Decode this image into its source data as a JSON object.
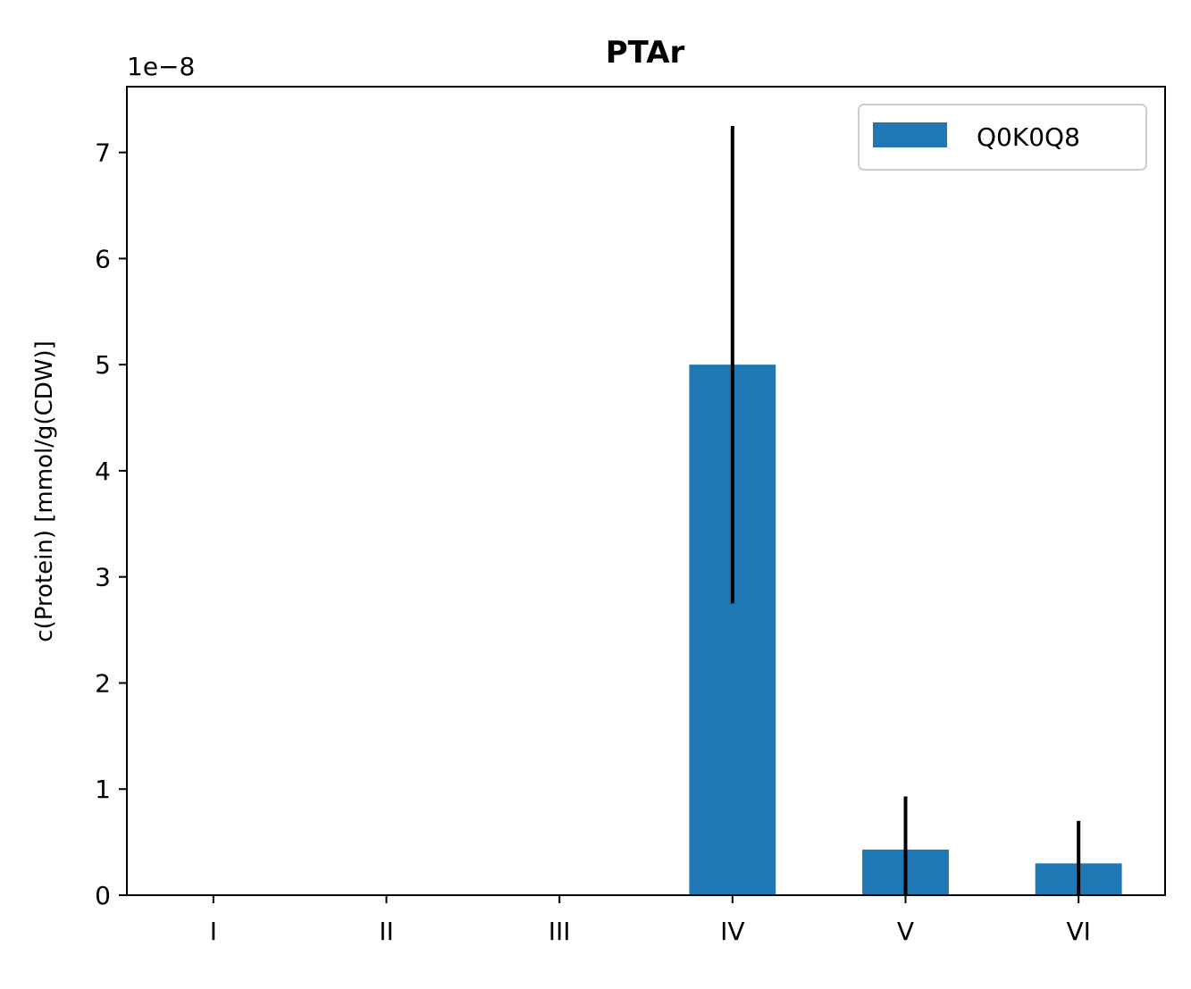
{
  "chart_data": {
    "type": "bar",
    "title": "PTAr",
    "xlabel": "",
    "ylabel": "c(Protein) [mmol/g(CDW)]",
    "offset_label": "1e−8",
    "categories": [
      "I",
      "II",
      "III",
      "IV",
      "V",
      "VI"
    ],
    "series": [
      {
        "name": "Q0K0Q8",
        "color": "#1f77b4",
        "values": [
          0,
          0,
          0,
          5e-08,
          4.3e-09,
          3e-09
        ],
        "errors": [
          0,
          0,
          0,
          2.25e-08,
          5e-09,
          4e-09
        ]
      }
    ],
    "ylim": [
      0,
      7.62e-08
    ],
    "yticks": [
      0,
      1e-08,
      2e-08,
      3e-08,
      4e-08,
      5e-08,
      6e-08,
      7e-08
    ],
    "ytick_labels": [
      "0",
      "1",
      "2",
      "3",
      "4",
      "5",
      "6",
      "7"
    ],
    "grid": false,
    "legend_position": "top-right"
  }
}
